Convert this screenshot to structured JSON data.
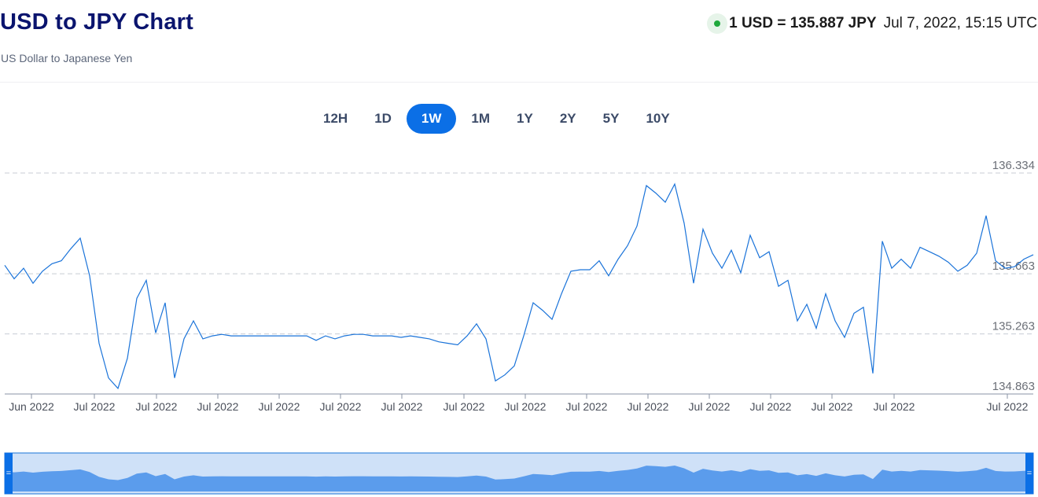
{
  "header": {
    "title": "USD to JPY Chart",
    "subtitle": "US Dollar to Japanese Yen",
    "rate": "1 USD = 135.887 JPY",
    "timestamp": "Jul 7, 2022, 15:15 UTC"
  },
  "colors": {
    "accent": "#0b6fe6",
    "line": "#1a73d9",
    "live_dot": "#1fa83c",
    "navigator_fill": "#5b9cec"
  },
  "ranges": [
    {
      "label": "12H",
      "active": false
    },
    {
      "label": "1D",
      "active": false
    },
    {
      "label": "1W",
      "active": true
    },
    {
      "label": "1M",
      "active": false
    },
    {
      "label": "1Y",
      "active": false
    },
    {
      "label": "2Y",
      "active": false
    },
    {
      "label": "5Y",
      "active": false
    },
    {
      "label": "10Y",
      "active": false
    }
  ],
  "chart_data": {
    "type": "line",
    "title": "",
    "xlabel": "",
    "ylabel": "",
    "ylim": [
      134.863,
      136.334
    ],
    "grid": true,
    "y_ticks": [
      136.334,
      135.663,
      135.263,
      134.863
    ],
    "x_tick_labels": [
      "Jun 2022",
      "Jul 2022",
      "Jul 2022",
      "Jul 2022",
      "Jul 2022",
      "Jul 2022",
      "Jul 2022",
      "Jul 2022",
      "Jul 2022",
      "Jul 2022",
      "Jul 2022",
      "Jul 2022",
      "Jul 2022",
      "Jul 2022",
      "Jul 2022",
      "Jul 2022"
    ],
    "series": [
      {
        "values": [
          135.72,
          135.63,
          135.7,
          135.6,
          135.68,
          135.73,
          135.75,
          135.83,
          135.9,
          135.65,
          135.2,
          134.97,
          134.9,
          135.1,
          135.5,
          135.62,
          135.27,
          135.47,
          134.97,
          135.23,
          135.35,
          135.23,
          135.25,
          135.26,
          135.25,
          135.25,
          135.25,
          135.25,
          135.25,
          135.25,
          135.25,
          135.25,
          135.25,
          135.22,
          135.25,
          135.23,
          135.25,
          135.26,
          135.26,
          135.25,
          135.25,
          135.25,
          135.24,
          135.25,
          135.24,
          135.23,
          135.21,
          135.2,
          135.19,
          135.25,
          135.33,
          135.23,
          134.95,
          134.99,
          135.05,
          135.25,
          135.47,
          135.42,
          135.36,
          135.53,
          135.68,
          135.69,
          135.69,
          135.75,
          135.65,
          135.76,
          135.85,
          135.98,
          136.25,
          136.2,
          136.14,
          136.26,
          136.0,
          135.6,
          135.96,
          135.8,
          135.7,
          135.82,
          135.67,
          135.92,
          135.77,
          135.81,
          135.58,
          135.62,
          135.35,
          135.46,
          135.3,
          135.53,
          135.35,
          135.24,
          135.4,
          135.44,
          135.0,
          135.88,
          135.7,
          135.76,
          135.7,
          135.84,
          135.81,
          135.78,
          135.74,
          135.68,
          135.72,
          135.8,
          136.05,
          135.75,
          135.7,
          135.71,
          135.76,
          135.79
        ]
      }
    ]
  }
}
